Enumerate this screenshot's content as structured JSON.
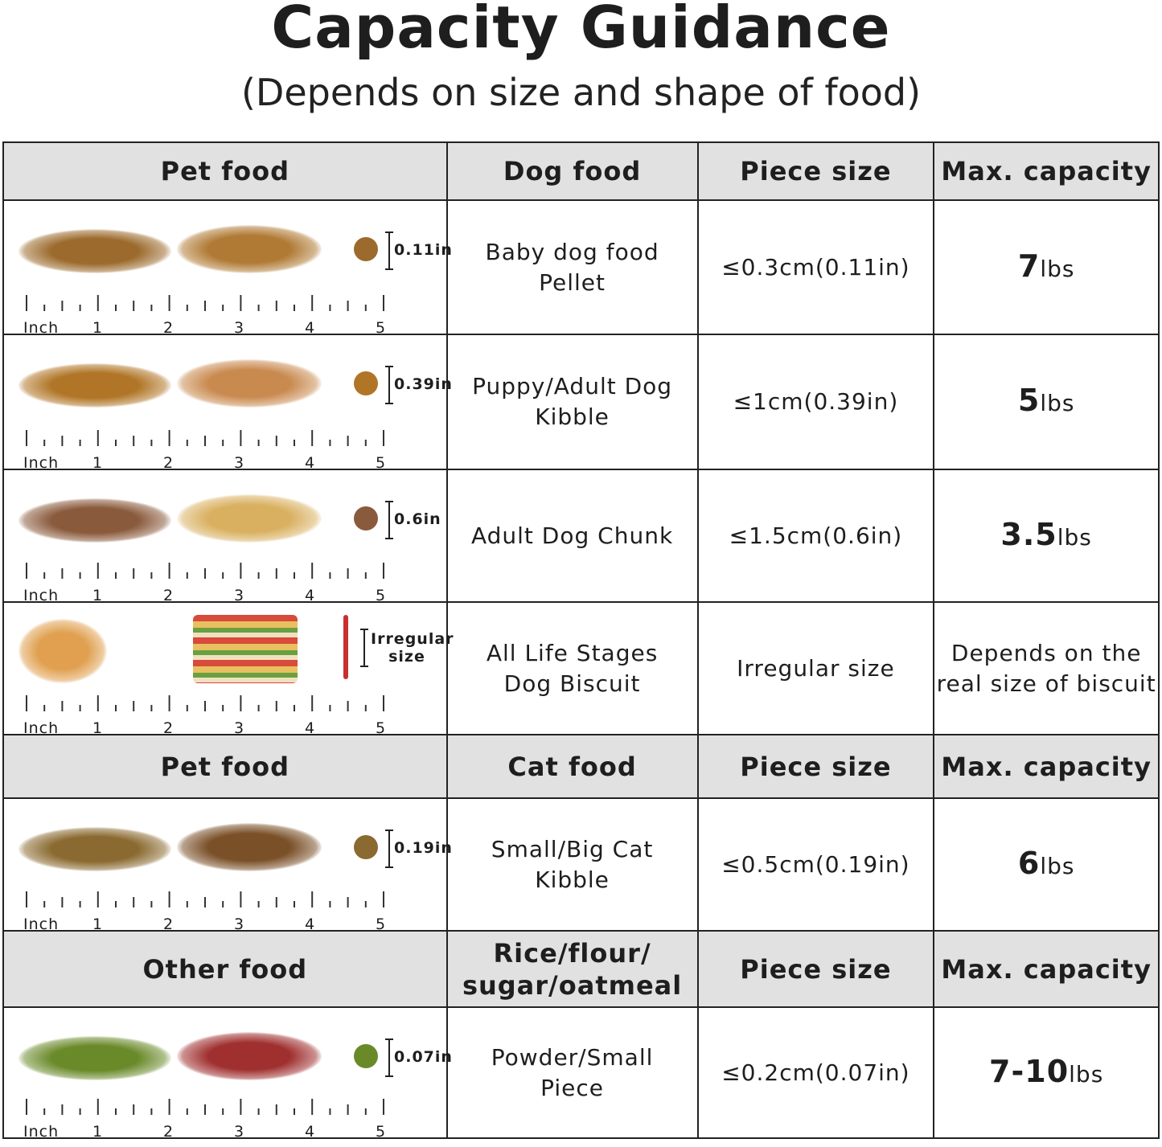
{
  "title": "Capacity Guidance",
  "subtitle": "(Depends on size and shape of food)",
  "ruler": {
    "unit": "Inch",
    "labels": [
      "1",
      "2",
      "3",
      "4",
      "5"
    ]
  },
  "headers": [
    {
      "c1": "Pet food",
      "c2": "Dog food",
      "c3": "Piece size",
      "c4": "Max. capacity"
    },
    {
      "c1": "Pet food",
      "c2": "Cat food",
      "c3": "Piece size",
      "c4": "Max. capacity"
    },
    {
      "c1": "Other food",
      "c2": "Rice/flour/ sugar/oatmeal",
      "c3": "Piece size",
      "c4": "Max. capacity"
    }
  ],
  "rows": [
    {
      "size_label": "0.11in",
      "food": "Baby dog food Pellet",
      "piece": "≤0.3cm(0.11in)",
      "cap": "7",
      "unit": "lbs",
      "colors": [
        "#9b6a2c",
        "#b07a34"
      ]
    },
    {
      "size_label": "0.39in",
      "food": "Puppy/Adult Dog Kibble",
      "piece": "≤1cm(0.39in)",
      "cap": "5",
      "unit": "lbs",
      "colors": [
        "#b07526",
        "#c98a4f"
      ]
    },
    {
      "size_label": "0.6in",
      "food": "Adult Dog Chunk",
      "piece": "≤1.5cm(0.6in)",
      "cap": "3.5",
      "unit": "lbs",
      "colors": [
        "#8a5a3c",
        "#d9b060"
      ]
    },
    {
      "size_label": "Irregular size",
      "food": "All Life Stages Dog Biscuit",
      "piece": "Irregular size",
      "cap_text": "Depends on the real size of biscuit",
      "colors": [
        "#e0a050",
        "#d84a3a"
      ]
    },
    {
      "size_label": "0.19in",
      "food": "Small/Big Cat Kibble",
      "piece": "≤0.5cm(0.19in)",
      "cap": "6",
      "unit": "lbs",
      "colors": [
        "#8a6a30",
        "#7a5028"
      ]
    },
    {
      "size_label": "0.07in",
      "food": "Powder/Small Piece",
      "piece": "≤0.2cm(0.07in)",
      "cap": "7-10",
      "unit": "lbs",
      "colors": [
        "#6a8a2a",
        "#a03030"
      ]
    }
  ]
}
